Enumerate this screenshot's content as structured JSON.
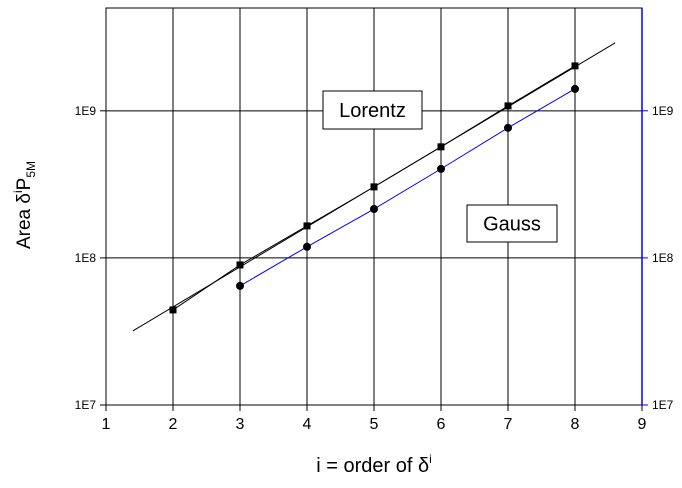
{
  "chart_data": {
    "type": "line",
    "xlabel": [
      "i = order of δ",
      "i"
    ],
    "ylabel": [
      "Area δ",
      "i",
      "P",
      "5M"
    ],
    "xlim": [
      1,
      9
    ],
    "xticks": [
      1,
      2,
      3,
      4,
      5,
      6,
      7,
      8,
      9
    ],
    "ylim": [
      10000000,
      5000000000
    ],
    "yticks": [
      {
        "value": 10000000,
        "label": "1E7"
      },
      {
        "value": 100000000,
        "label": "1E8"
      },
      {
        "value": 1000000000,
        "label": "1E9"
      }
    ],
    "log_y": true,
    "grid": true,
    "x": [
      2,
      3,
      4,
      5,
      6,
      7,
      8
    ],
    "series": [
      {
        "name": "Lorentz",
        "color": "#000000",
        "marker": "square",
        "values": [
          44300000,
          89600000,
          165000000,
          304000000,
          569000000,
          1080000000,
          2020000000
        ]
      },
      {
        "name": "Gauss",
        "color": "#0000ff",
        "marker": "circle",
        "values": [
          null,
          64500000,
          119000000,
          215000000,
          403000000,
          766000000,
          1410000000
        ]
      }
    ],
    "fit_line": {
      "color": "#000000",
      "x": [
        1.4,
        8.6
      ],
      "values": [
        31900000,
        2900000000
      ]
    },
    "right_axis_color": "#0000ff"
  }
}
